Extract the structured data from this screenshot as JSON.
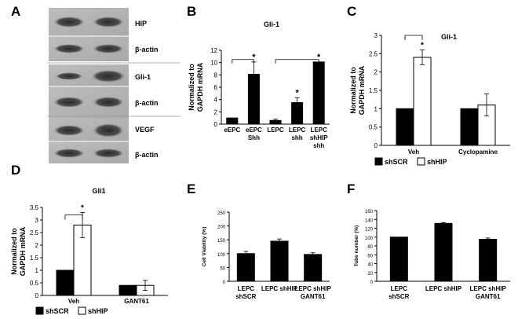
{
  "panel_letters": [
    "A",
    "B",
    "C",
    "D",
    "E",
    "F"
  ],
  "blot": {
    "labels": [
      "HIP",
      "β-actin",
      "Gli-1",
      "β-actin",
      "VEGF",
      "β-actin"
    ]
  },
  "chart_data": [
    {
      "id": "B",
      "type": "bar",
      "title": "Gli-1",
      "ylabel": "Normalized to GAPDH mRNA",
      "ylim": [
        0,
        12
      ],
      "yticks": [
        0,
        2,
        4,
        6,
        8,
        10,
        12
      ],
      "categories": [
        [
          "eEPC"
        ],
        [
          "eEPC",
          "Shh"
        ],
        [
          "LEPC"
        ],
        [
          "LEPC",
          "shh"
        ],
        [
          "LEPC",
          "shHIP",
          "shh"
        ]
      ],
      "values": [
        1.0,
        8.1,
        0.6,
        3.5,
        10.1
      ],
      "errors": [
        0,
        2.0,
        0.2,
        0.8,
        0
      ],
      "stars": [
        false,
        true,
        false,
        true,
        true
      ],
      "bar_color": "#000000"
    },
    {
      "id": "C",
      "type": "bar",
      "title": "Gli-1",
      "ylabel": "Normalized to GAPDH mRNA",
      "ylim": [
        0,
        3
      ],
      "yticks": [
        "0",
        "0.5",
        "1",
        "1.5",
        "2",
        "2.5",
        "3"
      ],
      "categories": [
        "Veh",
        "Cyclopamine"
      ],
      "series": [
        {
          "name": "shSCR",
          "values": [
            1.0,
            1.0
          ],
          "errors": [
            0,
            0
          ],
          "color": "#000000"
        },
        {
          "name": "shHIP",
          "values": [
            2.4,
            1.1
          ],
          "errors": [
            0.2,
            0.3
          ],
          "color": "#ffffff"
        }
      ],
      "star": "*",
      "legend": "bottom"
    },
    {
      "id": "D",
      "type": "bar",
      "title": "Gli1",
      "ylabel": "Normalized to GAPDH mRNA",
      "ylim": [
        0,
        3.5
      ],
      "yticks": [
        "0",
        "0.5",
        "1",
        "1.5",
        "2",
        "2.5",
        "3",
        "3.5"
      ],
      "categories": [
        "Veh",
        "GANT61"
      ],
      "series": [
        {
          "name": "shSCR",
          "values": [
            1.0,
            0.4
          ],
          "errors": [
            0,
            0
          ],
          "color": "#000000"
        },
        {
          "name": "shHIP",
          "values": [
            2.8,
            0.4
          ],
          "errors": [
            0.5,
            0.2
          ],
          "color": "#ffffff"
        }
      ],
      "star": "*",
      "legend": "bottom"
    },
    {
      "id": "E",
      "type": "bar",
      "ylabel": "Cell Viability (%)",
      "ylim": [
        0,
        250
      ],
      "yticks": [
        "0",
        "50",
        "100",
        "150",
        "200",
        "250"
      ],
      "categories": [
        [
          "LEPC",
          "shSCR"
        ],
        [
          "LEPC shHIP"
        ],
        [
          "LEPC shHIP",
          "GANT61"
        ]
      ],
      "values": [
        100,
        145,
        97
      ],
      "errors": [
        8,
        8,
        6
      ]
    },
    {
      "id": "F",
      "type": "bar",
      "ylabel": "Tube number (%)",
      "ylim": [
        0,
        160
      ],
      "yticks": [
        "0",
        "20",
        "40",
        "60",
        "80",
        "100",
        "120",
        "140",
        "160"
      ],
      "categories": [
        [
          "LEPC",
          "shSCR"
        ],
        [
          "LEPC shHIP"
        ],
        [
          "LEPC shHIP",
          "GANT61"
        ]
      ],
      "values": [
        100,
        131,
        95
      ],
      "errors": [
        0,
        2,
        3
      ]
    }
  ]
}
